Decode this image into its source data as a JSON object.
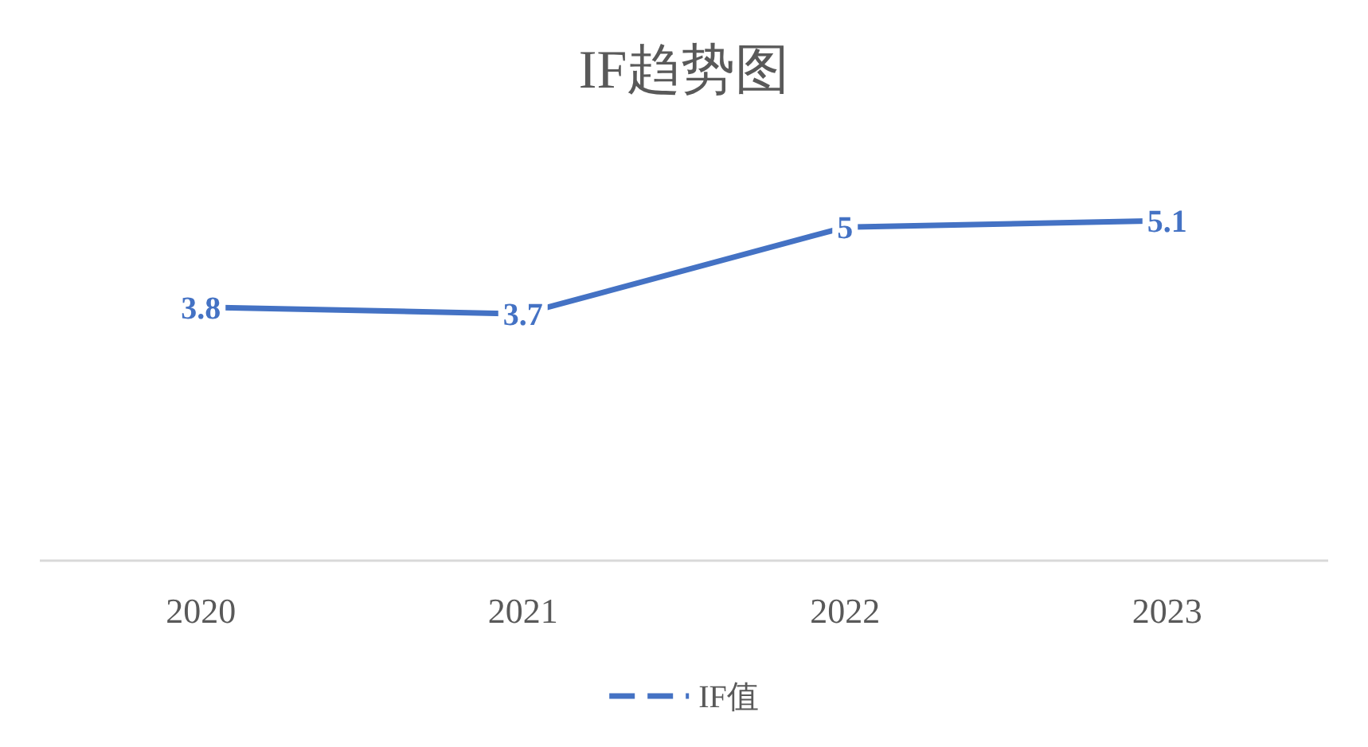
{
  "chart_data": {
    "type": "line",
    "title": "IF趋势图",
    "categories": [
      "2020",
      "2021",
      "2022",
      "2023"
    ],
    "series": [
      {
        "name": "IF值",
        "color": "#4472c4",
        "values": [
          3.8,
          3.7,
          5,
          5.1
        ]
      }
    ],
    "data_labels": true,
    "legend": "bottom",
    "line_style": "solid"
  }
}
